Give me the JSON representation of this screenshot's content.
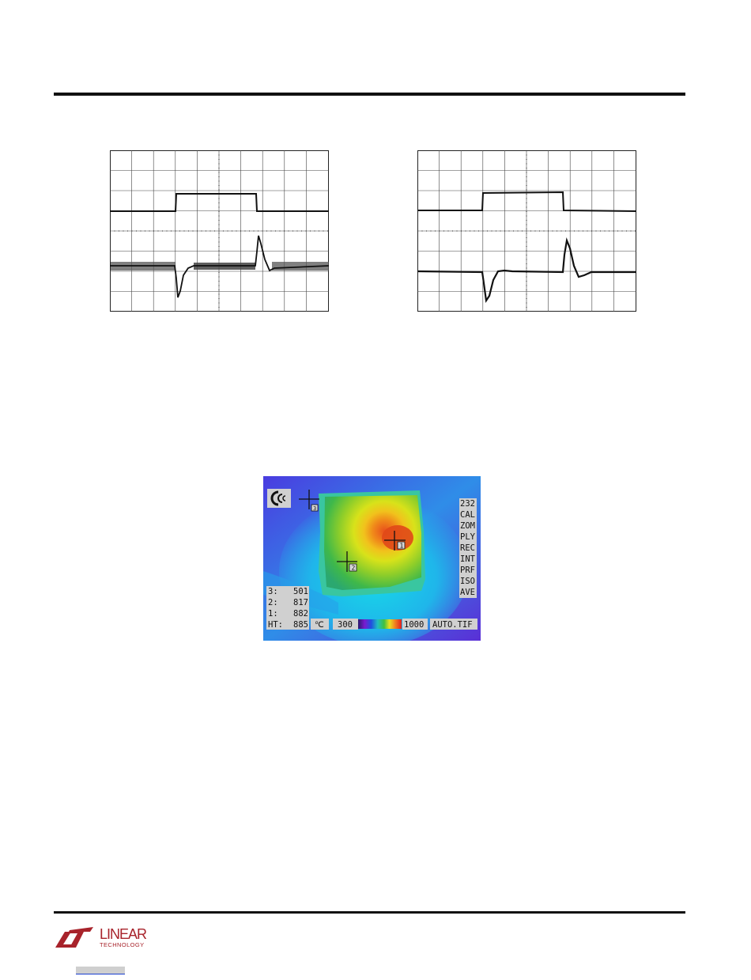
{
  "header": {
    "rule": "top-rule"
  },
  "scopes": [
    {
      "name": "scope-left"
    },
    {
      "name": "scope-right"
    }
  ],
  "thermal_image": {
    "status_icon": "mode-icon",
    "marker_labels": [
      "1",
      "2",
      "3"
    ],
    "readings": [
      {
        "label": "3:",
        "value": "501"
      },
      {
        "label": "2:",
        "value": "817"
      },
      {
        "label": "1:",
        "value": "882"
      },
      {
        "label": "HT:",
        "value": "885"
      }
    ],
    "unit": "℃",
    "scale_min": "300",
    "scale_max": "1000",
    "filename": "AUTO.TIF",
    "menu": [
      "232",
      "CAL",
      "ZOM",
      "PLY",
      "REC",
      "INT",
      "PRF",
      "ISO",
      "AVE"
    ]
  },
  "footer": {
    "logo_word": "LINEAR",
    "logo_sub": "TECHNOLOGY",
    "brand_color": "#a8232b",
    "link_color": "#1a3fd0"
  }
}
